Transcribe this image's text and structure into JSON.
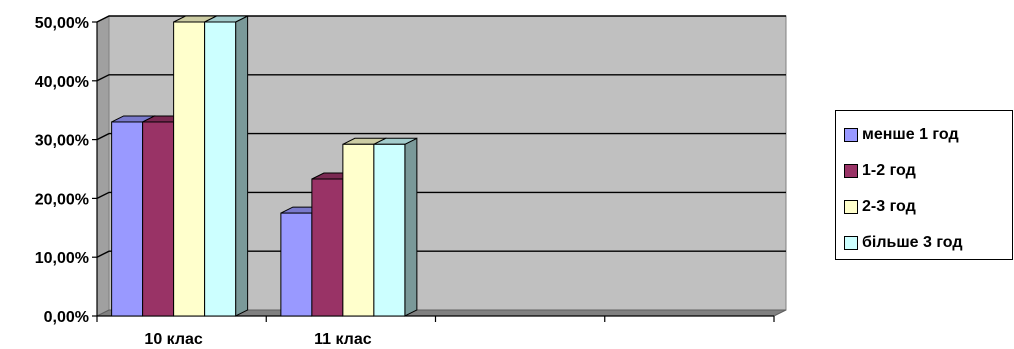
{
  "chart_data": {
    "type": "bar",
    "categories": [
      "10 клас",
      "11 клас",
      "",
      ""
    ],
    "series": [
      {
        "name": "менше 1 год",
        "values": [
          33,
          17.5,
          null,
          null
        ],
        "color": "#9999ff"
      },
      {
        "name": "1-2 год",
        "values": [
          33,
          23.3,
          null,
          null
        ],
        "color": "#993366"
      },
      {
        "name": "2-3 год",
        "values": [
          50,
          29.2,
          null,
          null
        ],
        "color": "#ffffcc"
      },
      {
        "name": "більше 3 год",
        "values": [
          50,
          29.2,
          null,
          null
        ],
        "color": "#ccffff"
      }
    ],
    "yticks": [
      "0,00%",
      "10,00%",
      "20,00%",
      "30,00%",
      "40,00%",
      "50,00%"
    ],
    "ylim": [
      0,
      50
    ],
    "grid": true,
    "plot_background": "#c0c0c0",
    "legend_position": "right",
    "style": "3d-clustered-column"
  }
}
